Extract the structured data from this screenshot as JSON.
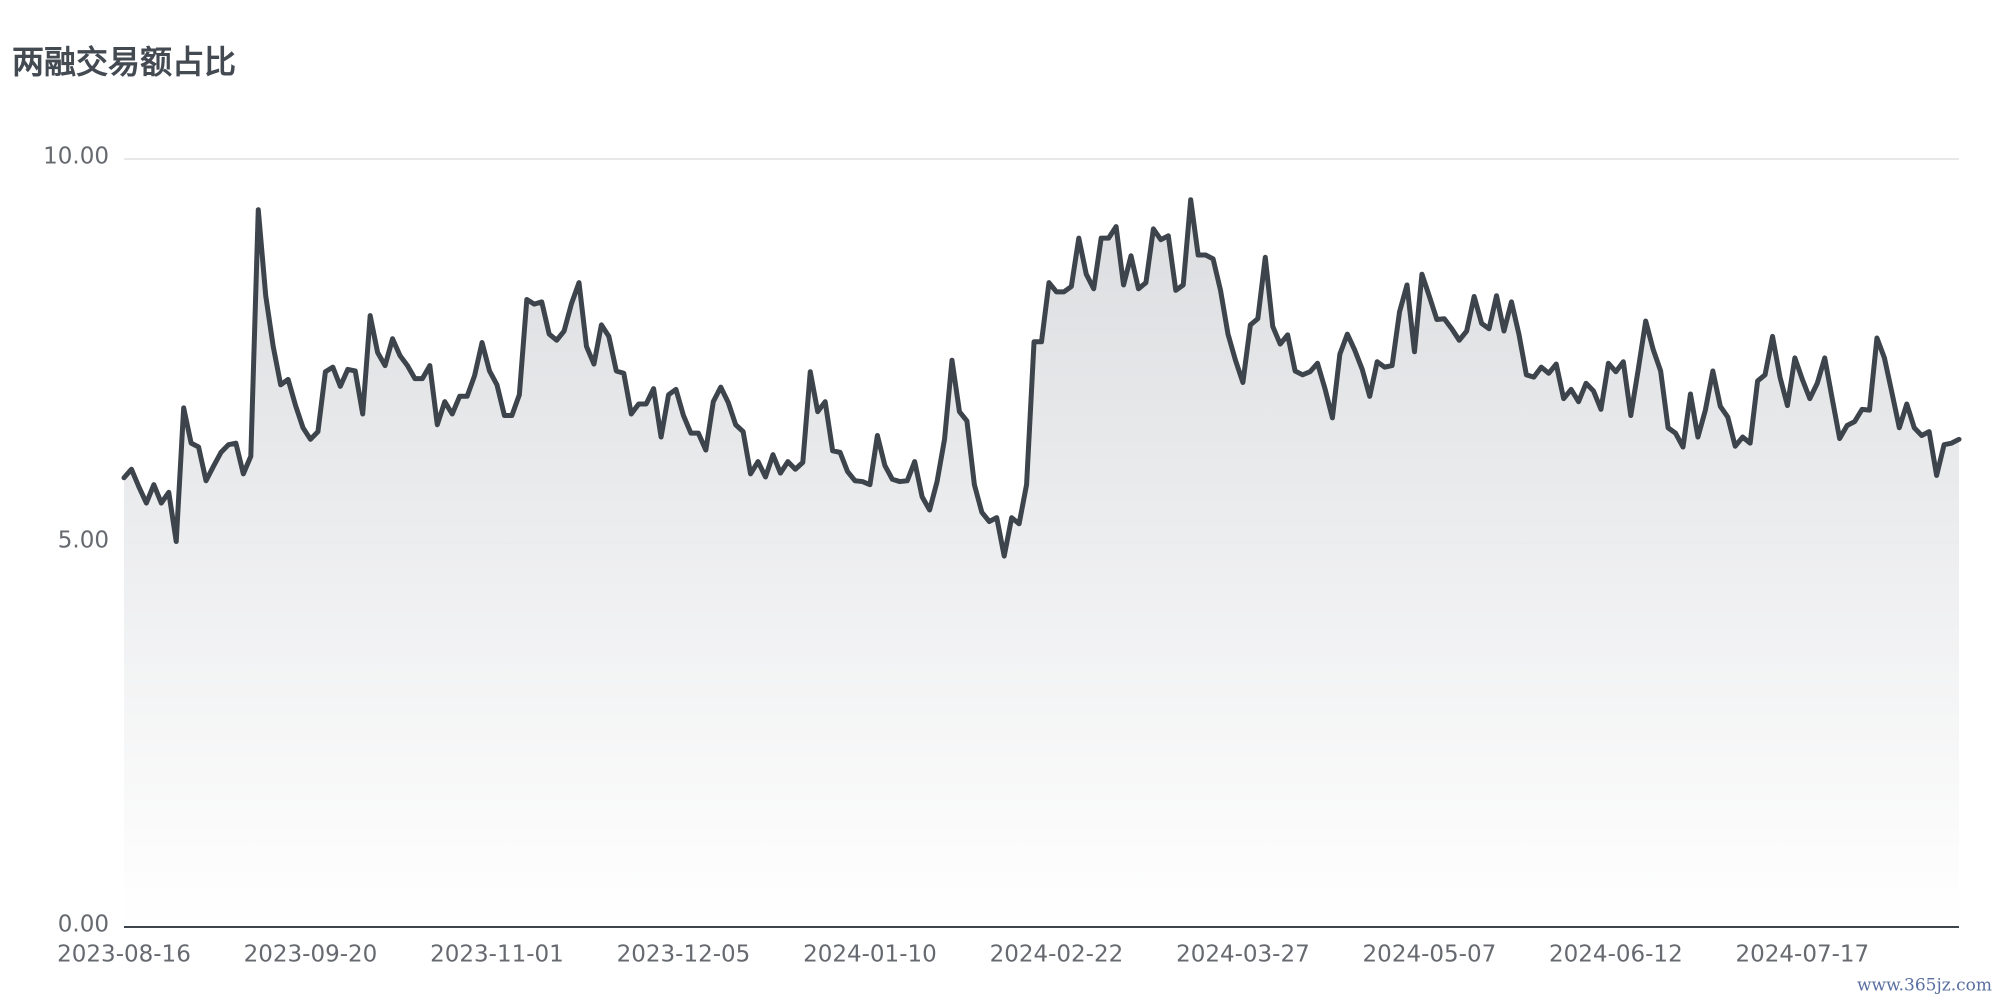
{
  "chart_data": {
    "type": "line",
    "title": "两融交易额占比",
    "watermark": "www.365jz.com",
    "color": "#3d444c",
    "area": true,
    "grid": true,
    "ylim": [
      0,
      10
    ],
    "yticks": [
      {
        "value": 0,
        "label": "0.00"
      },
      {
        "value": 5,
        "label": "5.00"
      },
      {
        "value": 10,
        "label": "10.00"
      }
    ],
    "categories": [
      "2023-08-16",
      null,
      null,
      null,
      null,
      null,
      null,
      null,
      null,
      null,
      null,
      null,
      null,
      null,
      null,
      null,
      null,
      null,
      null,
      null,
      null,
      null,
      null,
      null,
      null,
      "2023-09-20",
      null,
      null,
      null,
      null,
      null,
      null,
      null,
      null,
      null,
      null,
      null,
      null,
      null,
      null,
      null,
      null,
      null,
      null,
      null,
      null,
      null,
      null,
      null,
      null,
      "2023-11-01",
      null,
      null,
      null,
      null,
      null,
      null,
      null,
      null,
      null,
      null,
      null,
      null,
      null,
      null,
      null,
      null,
      null,
      null,
      null,
      null,
      null,
      null,
      null,
      null,
      "2023-12-05",
      null,
      null,
      null,
      null,
      null,
      null,
      null,
      null,
      null,
      null,
      null,
      null,
      null,
      null,
      null,
      null,
      null,
      null,
      null,
      null,
      null,
      null,
      null,
      null,
      "2024-01-10",
      null,
      null,
      null,
      null,
      null,
      null,
      null,
      null,
      null,
      null,
      null,
      null,
      null,
      null,
      null,
      null,
      null,
      null,
      null,
      null,
      null,
      null,
      null,
      null,
      "2024-02-22",
      null,
      null,
      null,
      null,
      null,
      null,
      null,
      null,
      null,
      null,
      null,
      null,
      null,
      null,
      null,
      null,
      null,
      null,
      null,
      null,
      null,
      null,
      null,
      null,
      "2024-03-27",
      null,
      null,
      null,
      null,
      null,
      null,
      null,
      null,
      null,
      null,
      null,
      null,
      null,
      null,
      null,
      null,
      null,
      null,
      null,
      null,
      null,
      null,
      null,
      null,
      "2024-05-07",
      null,
      null,
      null,
      null,
      null,
      null,
      null,
      null,
      null,
      null,
      null,
      null,
      null,
      null,
      null,
      null,
      null,
      null,
      null,
      null,
      null,
      null,
      null,
      null,
      "2024-06-12",
      null,
      null,
      null,
      null,
      null,
      null,
      null,
      null,
      null,
      null,
      null,
      null,
      null,
      null,
      null,
      null,
      null,
      null,
      null,
      null,
      null,
      null,
      null,
      null,
      "2024-07-17",
      null,
      null,
      null,
      null,
      null,
      null,
      null,
      null,
      null,
      null,
      null,
      null,
      null,
      null,
      null,
      null,
      null,
      null,
      null,
      null,
      null
    ],
    "values": [
      5.85,
      5.96,
      5.73,
      5.52,
      5.76,
      5.52,
      5.66,
      5.02,
      6.76,
      6.3,
      6.25,
      5.81,
      6.0,
      6.18,
      6.28,
      6.3,
      5.9,
      6.13,
      9.34,
      8.22,
      7.56,
      7.06,
      7.13,
      6.79,
      6.5,
      6.35,
      6.45,
      7.23,
      7.29,
      7.04,
      7.26,
      7.24,
      6.68,
      7.96,
      7.48,
      7.31,
      7.66,
      7.44,
      7.31,
      7.14,
      7.14,
      7.31,
      6.54,
      6.84,
      6.68,
      6.91,
      6.91,
      7.18,
      7.61,
      7.24,
      7.06,
      6.66,
      6.66,
      6.93,
      8.17,
      8.11,
      8.14,
      7.72,
      7.64,
      7.76,
      8.12,
      8.39,
      7.56,
      7.33,
      7.84,
      7.69,
      7.24,
      7.21,
      6.68,
      6.81,
      6.81,
      7.01,
      6.38,
      6.93,
      7.0,
      6.66,
      6.43,
      6.43,
      6.21,
      6.84,
      7.03,
      6.83,
      6.54,
      6.45,
      5.9,
      6.06,
      5.86,
      6.15,
      5.91,
      6.06,
      5.96,
      6.05,
      7.23,
      6.71,
      6.84,
      6.2,
      6.18,
      5.93,
      5.81,
      5.8,
      5.76,
      6.4,
      6.01,
      5.83,
      5.8,
      5.81,
      6.06,
      5.6,
      5.43,
      5.8,
      6.35,
      7.38,
      6.71,
      6.59,
      5.76,
      5.4,
      5.28,
      5.33,
      4.83,
      5.33,
      5.25,
      5.76,
      7.62,
      7.62,
      8.39,
      8.27,
      8.27,
      8.34,
      8.97,
      8.5,
      8.31,
      8.97,
      8.97,
      9.12,
      8.36,
      8.74,
      8.31,
      8.39,
      9.09,
      8.95,
      9.0,
      8.29,
      8.36,
      9.47,
      8.75,
      8.75,
      8.7,
      8.29,
      7.72,
      7.38,
      7.09,
      7.84,
      7.92,
      8.72,
      7.82,
      7.59,
      7.71,
      7.24,
      7.19,
      7.23,
      7.34,
      7.01,
      6.63,
      7.46,
      7.72,
      7.51,
      7.26,
      6.91,
      7.36,
      7.29,
      7.31,
      8.01,
      8.36,
      7.49,
      8.5,
      8.21,
      7.91,
      7.92,
      7.79,
      7.64,
      7.76,
      8.21,
      7.86,
      7.79,
      8.22,
      7.76,
      8.14,
      7.72,
      7.19,
      7.16,
      7.29,
      7.21,
      7.33,
      6.88,
      7.0,
      6.84,
      7.08,
      6.98,
      6.74,
      7.34,
      7.23,
      7.36,
      6.66,
      7.26,
      7.89,
      7.52,
      7.24,
      6.5,
      6.43,
      6.25,
      6.94,
      6.38,
      6.73,
      7.24,
      6.78,
      6.64,
      6.26,
      6.38,
      6.3,
      7.11,
      7.19,
      7.69,
      7.16,
      6.79,
      7.41,
      7.13,
      6.88,
      7.08,
      7.41,
      6.88,
      6.36,
      6.53,
      6.58,
      6.74,
      6.73,
      7.67,
      7.41,
      6.96,
      6.5,
      6.81,
      6.5,
      6.4,
      6.45,
      5.88,
      6.28,
      6.3,
      6.35
    ]
  }
}
